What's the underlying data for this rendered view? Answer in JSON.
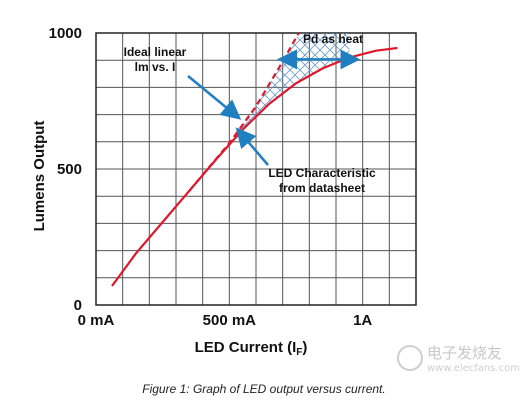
{
  "chart_data": {
    "type": "line",
    "ylabel": "Lumens Output",
    "xlabel_main": "LED Current (I",
    "xlabel_sub": "F",
    "xlabel_close": ")",
    "x_ticks": [
      {
        "value": 0,
        "label": "0 mA"
      },
      {
        "value": 500,
        "label": "500 mA"
      },
      {
        "value": 1000,
        "label": "1A"
      }
    ],
    "y_ticks": [
      {
        "value": 0,
        "label": "0"
      },
      {
        "value": 500,
        "label": "500"
      },
      {
        "value": 1000,
        "label": "1000"
      }
    ],
    "xlim": [
      0,
      1200
    ],
    "ylim": [
      0,
      1000
    ],
    "grid": true,
    "series": [
      {
        "name": "LED Characteristic from datasheet",
        "style": "solid",
        "color": "#e0162b",
        "x": [
          60,
          150,
          250,
          350,
          450,
          550,
          650,
          750,
          850,
          950,
          1050,
          1130
        ],
        "y": [
          70,
          190,
          305,
          420,
          535,
          645,
          740,
          815,
          870,
          910,
          935,
          945
        ]
      },
      {
        "name": "Ideal linear lm vs. I",
        "style": "dashed",
        "color": "#e0162b",
        "x": [
          350,
          500,
          600,
          700,
          760
        ],
        "y": [
          420,
          595,
          730,
          895,
          1000
        ]
      }
    ],
    "annotations": [
      {
        "lines": [
          "Ideal linear",
          "lm vs. I"
        ],
        "target": {
          "x": 545,
          "y": 700
        }
      },
      {
        "lines": [
          "LED Characteristic",
          "from datasheet"
        ],
        "target": {
          "x": 525,
          "y": 650
        }
      },
      {
        "lines": [
          "Pd as heat"
        ],
        "arrow_from": {
          "x": 690,
          "y": 925
        },
        "arrow_to": {
          "x": 980,
          "y": 925
        }
      }
    ],
    "shaded_region": "Pd as heat"
  },
  "caption": "Figure 1: Graph of LED output versus current.",
  "watermark": {
    "text": "电子发烧友",
    "url": "www.elecfans.com"
  },
  "colors": {
    "curve": "#e0162b",
    "arrow": "#1f7fc1",
    "grid": "#555555"
  }
}
